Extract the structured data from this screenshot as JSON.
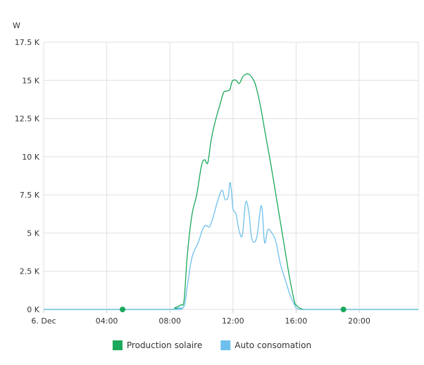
{
  "chart_data": {
    "type": "area",
    "ylabel": "W",
    "ylim": [
      0,
      17500
    ],
    "y_ticks": [
      "0 K",
      "2.5 K",
      "5 K",
      "7.5 K",
      "10 K",
      "12.5 K",
      "15 K",
      "17.5 K"
    ],
    "y_tick_values": [
      0,
      2500,
      5000,
      7500,
      10000,
      12500,
      15000,
      17500
    ],
    "x_unit": "hours",
    "xlim": [
      0,
      23.75
    ],
    "x_ticks": [
      "6. Dec",
      "04:00",
      "08:00",
      "12:00",
      "16:00",
      "20:00"
    ],
    "x_tick_values": [
      0,
      4,
      8,
      12,
      16,
      20
    ],
    "grid": true,
    "legend_position": "bottom-center",
    "series": [
      {
        "name": "Production solaire",
        "color": "#1aa85a",
        "x": [
          0,
          8,
          8.3,
          8.7,
          8.9,
          9.1,
          9.4,
          9.7,
          10.0,
          10.2,
          10.4,
          10.6,
          10.8,
          11.0,
          11.2,
          11.4,
          11.6,
          11.8,
          11.9,
          12.0,
          12.2,
          12.4,
          12.6,
          12.8,
          13.0,
          13.2,
          13.4,
          13.6,
          13.8,
          14.0,
          14.4,
          14.8,
          15.2,
          15.6,
          15.9,
          16.0,
          16.2,
          16.5,
          17,
          23.75
        ],
        "y": [
          0,
          0,
          100,
          300,
          600,
          3500,
          6200,
          7500,
          9400,
          9800,
          9600,
          11000,
          12000,
          12800,
          13500,
          14200,
          14300,
          14400,
          14800,
          15000,
          15000,
          14800,
          15200,
          15400,
          15400,
          15200,
          14800,
          14000,
          13000,
          11800,
          9500,
          7000,
          4500,
          2000,
          500,
          300,
          100,
          0,
          0,
          0
        ]
      },
      {
        "name": "Auto consomation",
        "color": "#6ec0ec",
        "x": [
          0,
          8,
          8.5,
          8.9,
          9.1,
          9.4,
          9.8,
          10.1,
          10.3,
          10.5,
          10.7,
          11.0,
          11.3,
          11.5,
          11.7,
          11.8,
          11.9,
          12.0,
          12.2,
          12.4,
          12.6,
          12.8,
          13.0,
          13.2,
          13.5,
          13.8,
          14.0,
          14.2,
          14.4,
          14.7,
          15.0,
          15.3,
          15.6,
          15.9,
          16.0,
          16.2,
          16.5,
          17,
          23.75
        ],
        "y": [
          0,
          0,
          100,
          200,
          1500,
          3400,
          4400,
          5300,
          5500,
          5400,
          5900,
          7000,
          7800,
          7200,
          7400,
          8300,
          7800,
          6600,
          6200,
          5100,
          4900,
          7000,
          6400,
          4600,
          4700,
          6800,
          4400,
          5200,
          5100,
          4500,
          3000,
          2000,
          1000,
          300,
          100,
          0,
          0,
          0,
          0
        ]
      }
    ],
    "markers": [
      {
        "x": 5.0,
        "y": 0,
        "color": "#1aa85a"
      },
      {
        "x": 19.0,
        "y": 0,
        "color": "#1aa85a"
      }
    ]
  }
}
